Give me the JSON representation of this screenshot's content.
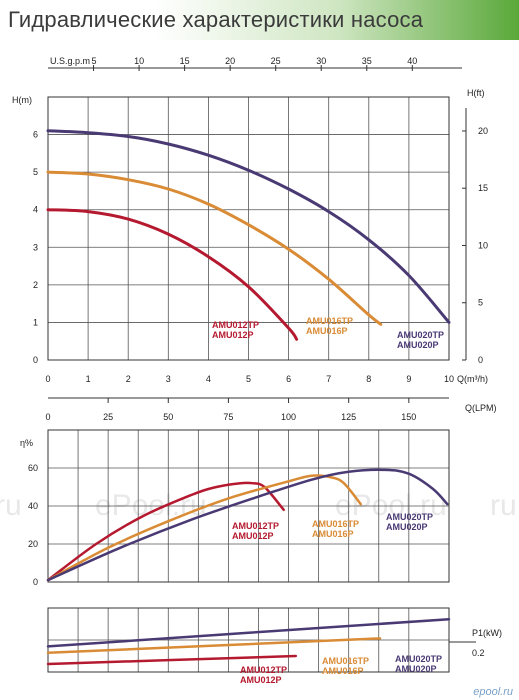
{
  "page": {
    "title": "Гидравлические характеристики насоса",
    "watermarks": [
      "ePool.ru",
      "ePool.ru",
      "l.ru",
      "ru"
    ],
    "footer": "epool.ru"
  },
  "colors": {
    "AMU012": "#b5192f",
    "AMU016": "#d98b35",
    "AMU020": "#4a3a74",
    "grid": "#555555"
  },
  "chart_data": [
    {
      "type": "line",
      "title": "",
      "xlabel": "Q(m³/h)",
      "ylabel": "H(m)",
      "y2label": "H(ft)",
      "xlim": [
        0,
        10
      ],
      "ylim": [
        0,
        7
      ],
      "xticks": [
        0,
        1,
        2,
        3,
        4,
        5,
        6,
        7,
        8,
        9,
        10
      ],
      "yticks": [
        0,
        1,
        2,
        3,
        4,
        5,
        6
      ],
      "y2ticks": [
        0,
        5,
        10,
        15,
        20
      ],
      "top_axis": {
        "label": "U.S.g.p.m",
        "ticks": [
          5,
          10,
          15,
          20,
          25,
          30,
          35,
          40
        ]
      },
      "grid": true,
      "series": [
        {
          "name": "AMU012TP AMU012P",
          "label_lines": [
            "AMU012TP",
            "AMU012P"
          ],
          "color_key": "AMU012",
          "x": [
            0,
            1,
            2,
            3,
            4,
            5,
            6,
            6.2
          ],
          "y": [
            4.0,
            3.95,
            3.75,
            3.35,
            2.75,
            1.95,
            0.85,
            0.55
          ]
        },
        {
          "name": "AMU016TP AMU016P",
          "label_lines": [
            "AMU016TP",
            "AMU016P"
          ],
          "color_key": "AMU016",
          "x": [
            0,
            1,
            2,
            3,
            4,
            5,
            6,
            7,
            8,
            8.3
          ],
          "y": [
            5.0,
            4.95,
            4.8,
            4.55,
            4.15,
            3.6,
            2.95,
            2.15,
            1.2,
            0.95
          ]
        },
        {
          "name": "AMU020TP AMU020P",
          "label_lines": [
            "AMU020TP",
            "AMU020P"
          ],
          "color_key": "AMU020",
          "x": [
            0,
            1,
            2,
            3,
            4,
            5,
            6,
            7,
            8,
            9,
            10
          ],
          "y": [
            6.1,
            6.05,
            5.95,
            5.75,
            5.45,
            5.05,
            4.55,
            3.95,
            3.2,
            2.25,
            1.0
          ]
        }
      ]
    },
    {
      "type": "line",
      "title": "",
      "xlabel": "Q(LPM)",
      "ylabel": "η%",
      "xlim": [
        0,
        166.7
      ],
      "ylim": [
        0,
        80
      ],
      "xticks": [
        25,
        50,
        75,
        100,
        125,
        150
      ],
      "yticks": [
        0,
        20,
        40,
        60
      ],
      "grid": true,
      "series": [
        {
          "name": "AMU012TP AMU012P",
          "label_lines": [
            "AMU012TP",
            "AMU012P"
          ],
          "color_key": "AMU012",
          "x": [
            0,
            20,
            40,
            60,
            70,
            80,
            85,
            90,
            98
          ],
          "y": [
            1,
            20,
            35,
            46,
            50,
            52,
            52,
            50,
            38
          ]
        },
        {
          "name": "AMU016TP AMU016P",
          "label_lines": [
            "AMU016TP",
            "AMU016P"
          ],
          "color_key": "AMU016",
          "x": [
            0,
            25,
            50,
            75,
            100,
            110,
            118,
            123,
            130
          ],
          "y": [
            1,
            18,
            32,
            44,
            53,
            56,
            55,
            52,
            41
          ]
        },
        {
          "name": "AMU020TP AMU020P",
          "label_lines": [
            "AMU020TP",
            "AMU020P"
          ],
          "color_key": "AMU020",
          "x": [
            0,
            30,
            60,
            90,
            110,
            125,
            140,
            150,
            160,
            166
          ],
          "y": [
            1,
            18,
            33,
            46,
            54,
            58,
            59,
            57,
            49,
            41
          ]
        }
      ]
    },
    {
      "type": "line",
      "title": "",
      "ylabel": "P1(kW)",
      "xlim": [
        0,
        166.7
      ],
      "ylim": [
        0,
        0.4
      ],
      "yticks": [
        0.2
      ],
      "grid": true,
      "series": [
        {
          "name": "AMU012TP AMU012P",
          "label_lines": [
            "AMU012TP",
            "AMU012P"
          ],
          "color_key": "AMU012",
          "x": [
            0,
            103
          ],
          "y": [
            0.05,
            0.1
          ]
        },
        {
          "name": "AMU016TP AMU016P",
          "label_lines": [
            "AMU016TP",
            "AMU016P"
          ],
          "color_key": "AMU016",
          "x": [
            0,
            138
          ],
          "y": [
            0.12,
            0.21
          ]
        },
        {
          "name": "AMU020TP AMU020P",
          "label_lines": [
            "AMU020TP",
            "AMU020P"
          ],
          "color_key": "AMU020",
          "x": [
            0,
            166.7
          ],
          "y": [
            0.16,
            0.33
          ]
        }
      ]
    }
  ]
}
